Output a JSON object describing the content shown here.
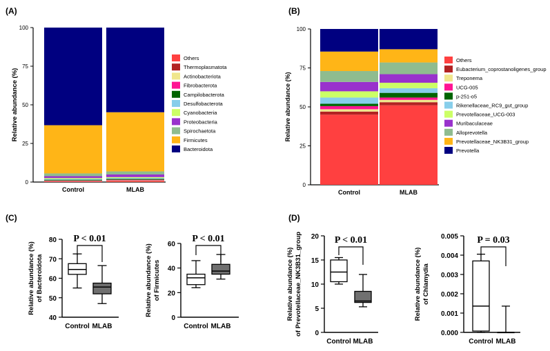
{
  "chart_data": [
    {
      "id": "A",
      "panel_label": "(A)",
      "type": "bar",
      "stacked": true,
      "ylabel": "Relative abundance (%)",
      "ylim": [
        0,
        100
      ],
      "yticks": [
        "0",
        "25",
        "50",
        "75",
        "100"
      ],
      "categories": [
        "Control",
        "MLAB"
      ],
      "legend": "right",
      "series": [
        {
          "name": "Bacteroidota",
          "color": "#000080",
          "values": [
            63.2,
            54.8
          ]
        },
        {
          "name": "Firmicutes",
          "color": "#FFB517",
          "values": [
            31.2,
            38.3
          ]
        },
        {
          "name": "Spirochaetota",
          "color": "#8FBC8F",
          "values": [
            1.8,
            2.0
          ]
        },
        {
          "name": "Proteobacteria",
          "color": "#9932CC",
          "values": [
            1.2,
            1.7
          ]
        },
        {
          "name": "Cyanobacteria",
          "color": "#CCFF66",
          "values": [
            0.6,
            0.6
          ]
        },
        {
          "name": "Desulfobacterota",
          "color": "#87CEEB",
          "values": [
            0.5,
            0.5
          ]
        },
        {
          "name": "Campilobacterota",
          "color": "#006400",
          "values": [
            0.5,
            0.6
          ]
        },
        {
          "name": "Fibrobacterota",
          "color": "#FF1493",
          "values": [
            0.3,
            0.4
          ]
        },
        {
          "name": "Actinobacteriota",
          "color": "#F0E68C",
          "values": [
            0.2,
            0.3
          ]
        },
        {
          "name": "Thermoplasmatota",
          "color": "#B22222",
          "values": [
            0.2,
            0.3
          ]
        },
        {
          "name": "Others",
          "color": "#FF4040",
          "values": [
            0.3,
            0.5
          ]
        }
      ]
    },
    {
      "id": "B",
      "panel_label": "(B)",
      "type": "bar",
      "stacked": true,
      "ylabel": "Relative abundance (%)",
      "ylim": [
        0,
        100
      ],
      "yticks": [
        "0",
        "25",
        "50",
        "75",
        "100"
      ],
      "categories": [
        "Control",
        "MLAB"
      ],
      "legend": "right",
      "series": [
        {
          "name": "Prevotella",
          "color": "#000080",
          "values": [
            14.5,
            13.0
          ]
        },
        {
          "name": "Prevotellaceae_NK3B31_group",
          "color": "#FFB517",
          "values": [
            12.5,
            8.5
          ]
        },
        {
          "name": "Alloprevotella",
          "color": "#8FBC8F",
          "values": [
            7.0,
            7.5
          ]
        },
        {
          "name": "Muribaculaceae",
          "color": "#9932CC",
          "values": [
            6.0,
            5.5
          ]
        },
        {
          "name": "Prevotellaceae_UCG-003",
          "color": "#CCFF66",
          "values": [
            4.0,
            3.5
          ]
        },
        {
          "name": "Rikenellaceae_RC9_gut_group",
          "color": "#87CEEB",
          "values": [
            4.0,
            3.0
          ]
        },
        {
          "name": "p-251-o5",
          "color": "#006400",
          "values": [
            1.5,
            3.0
          ]
        },
        {
          "name": "UCG-005",
          "color": "#FF1493",
          "values": [
            2.0,
            1.5
          ]
        },
        {
          "name": "Treponema",
          "color": "#F0E68C",
          "values": [
            1.5,
            1.5
          ]
        },
        {
          "name": "Eubacterium_coprostanoligenes_group",
          "color": "#B22222",
          "values": [
            2.0,
            2.0
          ]
        },
        {
          "name": "Others",
          "color": "#FF4040",
          "values": [
            45.0,
            51.0
          ]
        }
      ]
    },
    {
      "id": "C1",
      "panel_label": "(C)",
      "type": "box",
      "ylabel_line1": "Relative abundance (%)",
      "ylabel_line2": "of Bacteroidota",
      "ylim": [
        40,
        80
      ],
      "yticks": [
        "40",
        "50",
        "60",
        "70",
        "80"
      ],
      "categories": [
        "Control",
        "MLAB"
      ],
      "boxes": [
        {
          "min": 55,
          "q1": 62,
          "median": 64.5,
          "q3": 67.5,
          "max": 72.5,
          "fill": "#ffffff"
        },
        {
          "min": 47,
          "q1": 52,
          "median": 55.5,
          "q3": 57.5,
          "max": 66.5,
          "fill": "#707070"
        }
      ],
      "annotation": "P < 0.01"
    },
    {
      "id": "C2",
      "type": "box",
      "ylabel_line1": "Relative abundance (%)",
      "ylabel_line2": "of Firmicutes",
      "ylim": [
        0,
        60
      ],
      "yticks": [
        "0",
        "20",
        "40",
        "60"
      ],
      "categories": [
        "Control",
        "MLAB"
      ],
      "boxes": [
        {
          "min": 24,
          "q1": 26.5,
          "median": 32,
          "q3": 35,
          "max": 46,
          "fill": "#ffffff"
        },
        {
          "min": 31,
          "q1": 35,
          "median": 37.5,
          "q3": 43,
          "max": 51,
          "fill": "#707070"
        }
      ],
      "annotation": "P < 0.01"
    },
    {
      "id": "D1",
      "panel_label": "(D)",
      "type": "box",
      "ylabel_line1": "Relative abundance (%)",
      "ylabel_line2": "of Prevotellaceae_NK3B31_group",
      "ylim": [
        0,
        20
      ],
      "yticks": [
        "0",
        "5",
        "10",
        "15",
        "20"
      ],
      "categories": [
        "Control",
        "MLAB"
      ],
      "boxes": [
        {
          "min": 10,
          "q1": 10.5,
          "median": 12.5,
          "q3": 15,
          "max": 15.5,
          "fill": "#ffffff"
        },
        {
          "min": 5.3,
          "q1": 6.2,
          "median": 6.5,
          "q3": 8.5,
          "max": 12,
          "fill": "#707070"
        }
      ],
      "annotation": "P < 0.01"
    },
    {
      "id": "D2",
      "type": "box",
      "ylabel_line1": "Relative abundance (%)",
      "ylabel_line2": "of Chlamydia",
      "ylim": [
        0,
        0.005
      ],
      "yticks": [
        "0.000",
        "0.001",
        "0.002",
        "0.003",
        "0.004",
        "0.005"
      ],
      "categories": [
        "Control",
        "MLAB"
      ],
      "boxes": [
        {
          "min": 0,
          "q1": 7e-05,
          "median": 0.00136,
          "q3": 0.0037,
          "max": 0.00405,
          "fill": "#ffffff"
        },
        {
          "min": 0,
          "q1": 0,
          "median": 0,
          "q3": 0,
          "max": 0.00136,
          "fill": "#707070"
        }
      ],
      "annotation": "P = 0.03"
    }
  ]
}
